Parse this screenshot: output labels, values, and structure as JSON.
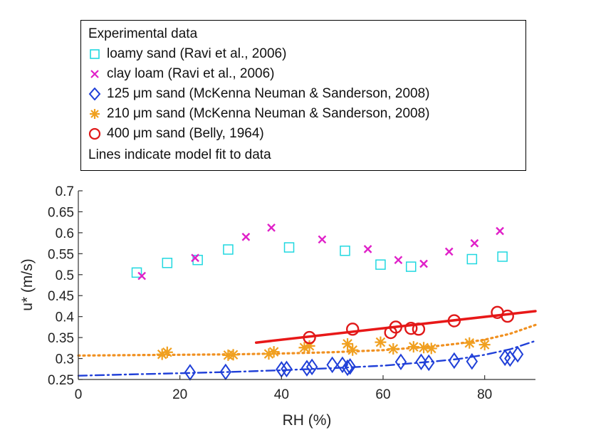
{
  "chart_data": {
    "type": "scatter",
    "title": "",
    "xlabel": "RH (%)",
    "ylabel": "u* (m/s)",
    "xlim": [
      0,
      90
    ],
    "ylim": [
      0.25,
      0.7
    ],
    "x_ticks": [
      0,
      20,
      40,
      60,
      80
    ],
    "y_ticks": [
      0.25,
      0.3,
      0.35,
      0.4,
      0.45,
      0.5,
      0.55,
      0.6,
      0.65,
      0.7
    ],
    "x_tick_labels": [
      "0",
      "20",
      "40",
      "60",
      "80"
    ],
    "y_tick_labels": [
      "0.25",
      "0.3",
      "0.35",
      "0.4",
      "0.45",
      "0.5",
      "0.55",
      "0.6",
      "0.65",
      "0.7"
    ],
    "grid": false,
    "legend": {
      "position": "top",
      "header": "Experimental data",
      "footer": "Lines indicate model fit to data"
    },
    "series": [
      {
        "name": "loamy sand (Ravi et al., 2006)",
        "marker": "square",
        "color": "#20d8e0",
        "points": [
          [
            11.5,
            0.505
          ],
          [
            17.5,
            0.528
          ],
          [
            23.5,
            0.535
          ],
          [
            29.5,
            0.56
          ],
          [
            41.5,
            0.565
          ],
          [
            52.5,
            0.557
          ],
          [
            59.5,
            0.524
          ],
          [
            65.5,
            0.519
          ],
          [
            77.5,
            0.537
          ],
          [
            83.5,
            0.543
          ]
        ]
      },
      {
        "name": "clay loam (Ravi et al., 2006)",
        "marker": "x",
        "color": "#e020c8",
        "points": [
          [
            12.5,
            0.497
          ],
          [
            23.0,
            0.54
          ],
          [
            33.0,
            0.59
          ],
          [
            38.0,
            0.612
          ],
          [
            48.0,
            0.584
          ],
          [
            57.0,
            0.561
          ],
          [
            63.0,
            0.535
          ],
          [
            68.0,
            0.526
          ],
          [
            73.0,
            0.555
          ],
          [
            78.0,
            0.575
          ],
          [
            83.0,
            0.604
          ]
        ]
      },
      {
        "name": "125 μm sand (McKenna Neuman & Sanderson, 2008)",
        "marker": "diamond",
        "color": "#1f3fd8",
        "points": [
          [
            22.0,
            0.267
          ],
          [
            29.0,
            0.268
          ],
          [
            40.0,
            0.274
          ],
          [
            41.0,
            0.275
          ],
          [
            45.0,
            0.277
          ],
          [
            46.0,
            0.28
          ],
          [
            50.0,
            0.285
          ],
          [
            52.0,
            0.285
          ],
          [
            53.0,
            0.278
          ],
          [
            53.5,
            0.281
          ],
          [
            63.5,
            0.292
          ],
          [
            67.5,
            0.292
          ],
          [
            69.0,
            0.29
          ],
          [
            74.0,
            0.295
          ],
          [
            77.5,
            0.293
          ],
          [
            84.0,
            0.302
          ],
          [
            85.0,
            0.3
          ],
          [
            86.5,
            0.31
          ]
        ]
      },
      {
        "name": "210 μm sand (McKenna Neuman & Sanderson, 2008)",
        "marker": "asterisk",
        "color": "#f0a020",
        "points": [
          [
            16.5,
            0.31
          ],
          [
            17.5,
            0.315
          ],
          [
            29.5,
            0.308
          ],
          [
            30.5,
            0.309
          ],
          [
            37.5,
            0.311
          ],
          [
            38.5,
            0.316
          ],
          [
            44.5,
            0.326
          ],
          [
            45.5,
            0.33
          ],
          [
            53.0,
            0.335
          ],
          [
            54.0,
            0.32
          ],
          [
            59.5,
            0.339
          ],
          [
            62.0,
            0.323
          ],
          [
            66.0,
            0.328
          ],
          [
            68.0,
            0.326
          ],
          [
            69.5,
            0.324
          ],
          [
            77.0,
            0.337
          ],
          [
            80.0,
            0.333
          ]
        ]
      },
      {
        "name": "400 μm sand (Belly, 1964)",
        "marker": "circle",
        "color": "#e01818",
        "points": [
          [
            45.5,
            0.35
          ],
          [
            54.0,
            0.37
          ],
          [
            61.5,
            0.362
          ],
          [
            62.5,
            0.375
          ],
          [
            65.5,
            0.372
          ],
          [
            67.0,
            0.37
          ],
          [
            74.0,
            0.39
          ],
          [
            82.5,
            0.41
          ],
          [
            84.5,
            0.401
          ]
        ]
      }
    ],
    "fit_lines": [
      {
        "series": "400 μm sand (Belly, 1964)",
        "style": "solid",
        "color": "#e81818",
        "points": [
          [
            35,
            0.338
          ],
          [
            90,
            0.413
          ]
        ]
      },
      {
        "series": "210 μm sand (McKenna Neuman & Sanderson, 2008)",
        "style": "dotted",
        "color": "#f09020",
        "points": [
          [
            0,
            0.307
          ],
          [
            10,
            0.308
          ],
          [
            20,
            0.309
          ],
          [
            30,
            0.31
          ],
          [
            40,
            0.312
          ],
          [
            50,
            0.315
          ],
          [
            60,
            0.32
          ],
          [
            70,
            0.329
          ],
          [
            75,
            0.336
          ],
          [
            80,
            0.345
          ],
          [
            85,
            0.359
          ],
          [
            90,
            0.38
          ]
        ]
      },
      {
        "series": "125 μm sand (McKenna Neuman & Sanderson, 2008)",
        "style": "dashdot",
        "color": "#1f3fd8",
        "points": [
          [
            0,
            0.259
          ],
          [
            10,
            0.262
          ],
          [
            20,
            0.265
          ],
          [
            30,
            0.268
          ],
          [
            40,
            0.272
          ],
          [
            50,
            0.277
          ],
          [
            60,
            0.283
          ],
          [
            70,
            0.293
          ],
          [
            75,
            0.299
          ],
          [
            80,
            0.309
          ],
          [
            85,
            0.322
          ],
          [
            90,
            0.342
          ]
        ]
      }
    ]
  }
}
